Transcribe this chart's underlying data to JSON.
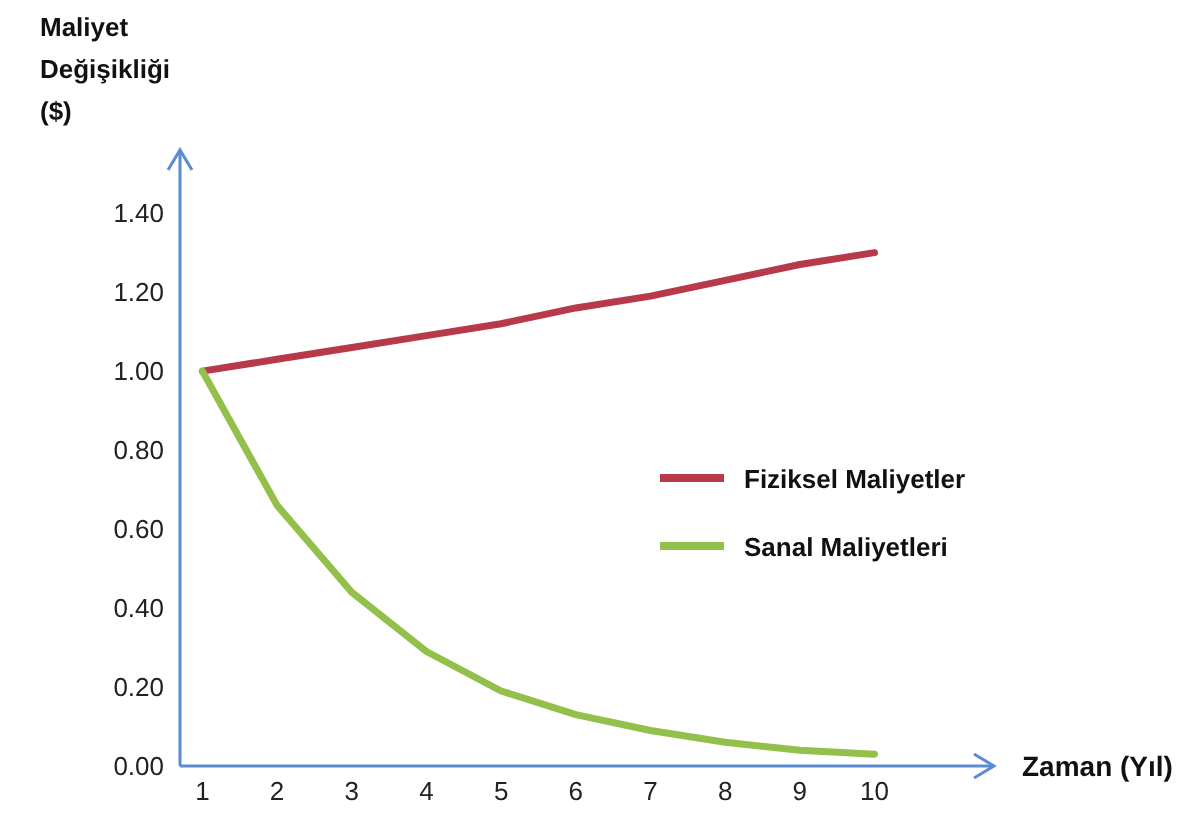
{
  "chart_data": {
    "type": "line",
    "xlabel": "Zaman (Yıl)",
    "ylabel": "Maliyet Değişikliği ($)",
    "x": [
      1,
      2,
      3,
      4,
      5,
      6,
      7,
      8,
      9,
      10
    ],
    "series": [
      {
        "name": "Fiziksel Maliyetler",
        "color": "#b8394a",
        "values": [
          1.0,
          1.03,
          1.06,
          1.09,
          1.12,
          1.16,
          1.19,
          1.23,
          1.27,
          1.3
        ]
      },
      {
        "name": "Sanal Maliyetleri",
        "color": "#92c04a",
        "values": [
          1.0,
          0.66,
          0.44,
          0.29,
          0.19,
          0.13,
          0.09,
          0.06,
          0.04,
          0.03
        ]
      }
    ],
    "xlim": [
      0.7,
      11.6
    ],
    "xticks": [
      1,
      2,
      3,
      4,
      5,
      6,
      7,
      8,
      9,
      10
    ],
    "ylim": [
      0,
      1.56
    ],
    "yticks": [
      {
        "value": 0,
        "label": "0.00"
      },
      {
        "value": 0.2,
        "label": "0.20"
      },
      {
        "value": 0.4,
        "label": "0.40"
      },
      {
        "value": 0.6,
        "label": "0.60"
      },
      {
        "value": 0.8,
        "label": "0.80"
      },
      {
        "value": 1,
        "label": "1.00"
      },
      {
        "value": 1.2,
        "label": "1.20"
      },
      {
        "value": 1.4,
        "label": "1.40"
      }
    ],
    "grid": false,
    "legend": "right",
    "marker": "none",
    "line_style": "solid"
  }
}
